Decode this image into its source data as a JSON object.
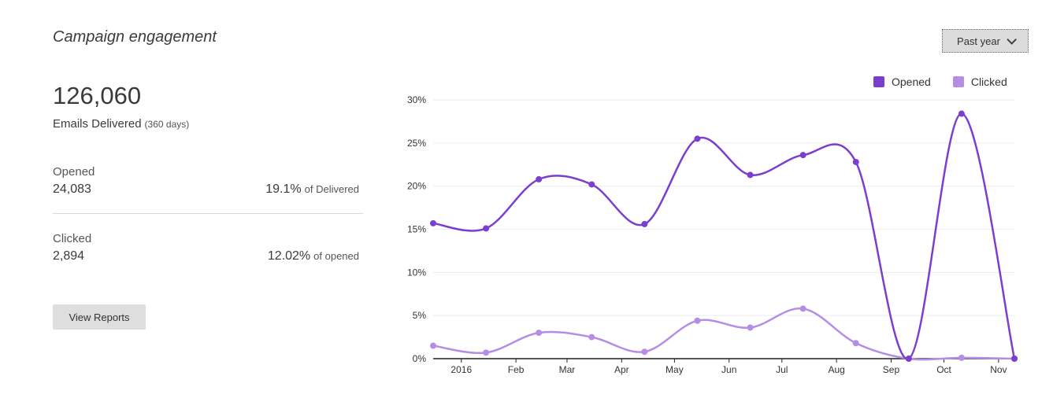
{
  "title": "Campaign engagement",
  "period_button": {
    "label": "Past year",
    "icon": "chevron-down-icon"
  },
  "summary": {
    "delivered_count": "126,060",
    "delivered_label": "Emails Delivered",
    "delivered_period": "(360 days)",
    "stats": [
      {
        "label": "Opened",
        "value": "24,083",
        "percent": "19.1%",
        "suffix": "of Delivered"
      },
      {
        "label": "Clicked",
        "value": "2,894",
        "percent": "12.02%",
        "suffix": "of opened"
      }
    ],
    "view_reports_label": "View Reports"
  },
  "colors": {
    "opened": "#7b3fcf",
    "clicked": "#b68de6",
    "grid": "#ececec",
    "axis": "#222222"
  },
  "chart_data": {
    "type": "line",
    "x": [
      "2015-12-16",
      "2016-01-15",
      "2016-02-14",
      "2016-03-15",
      "2016-04-14",
      "2016-05-14",
      "2016-06-13",
      "2016-07-13",
      "2016-08-12",
      "2016-09-11",
      "2016-10-11",
      "2016-11-10"
    ],
    "x_tick_labels": [
      "2016",
      "Feb",
      "Mar",
      "Apr",
      "May",
      "Jun",
      "Jul",
      "Aug",
      "Sep",
      "Oct",
      "Nov"
    ],
    "y_tick_labels": [
      "0%",
      "5%",
      "10%",
      "15%",
      "20%",
      "25%",
      "30%"
    ],
    "ylim": [
      0,
      30
    ],
    "series": [
      {
        "name": "Opened",
        "values": [
          15.7,
          15.1,
          20.8,
          20.2,
          15.6,
          25.5,
          21.3,
          23.6,
          22.8,
          0,
          28.4,
          0
        ]
      },
      {
        "name": "Clicked",
        "values": [
          1.5,
          0.7,
          3.0,
          2.5,
          0.8,
          4.4,
          3.6,
          5.8,
          1.8,
          0,
          0.1,
          0
        ]
      }
    ],
    "xlabel": "",
    "ylabel": "",
    "grid": true,
    "legend_position": "top-right"
  }
}
